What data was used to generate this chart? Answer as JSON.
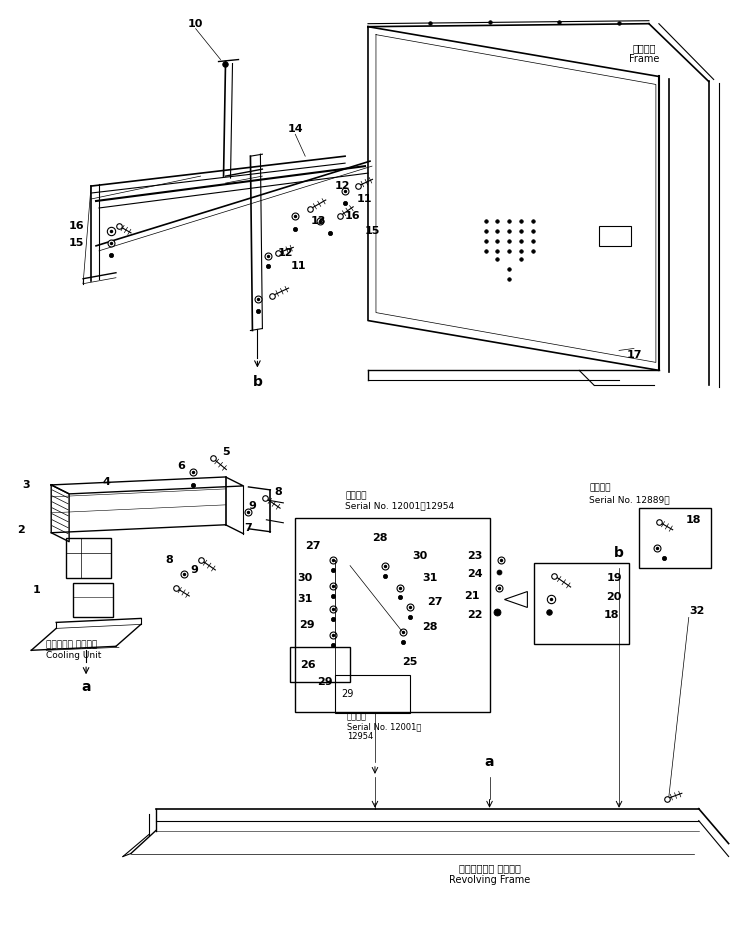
{
  "bg_color": "#ffffff",
  "fig_width": 7.32,
  "fig_height": 9.32,
  "dpi": 100,
  "frame_label": "フレーム\nFrame",
  "cooling_unit_label": "クーリング ユニット\nCooling Unit",
  "revolving_frame_label": "レボルビング フレーム\nRevolving Frame",
  "serial1_label": "適用号機\nSerial No. 12001～12954",
  "serial2_label": "適用号機\nSerial No. 12001～\n12954",
  "serial3_label": "適用号機\nSerial No. 12889～"
}
